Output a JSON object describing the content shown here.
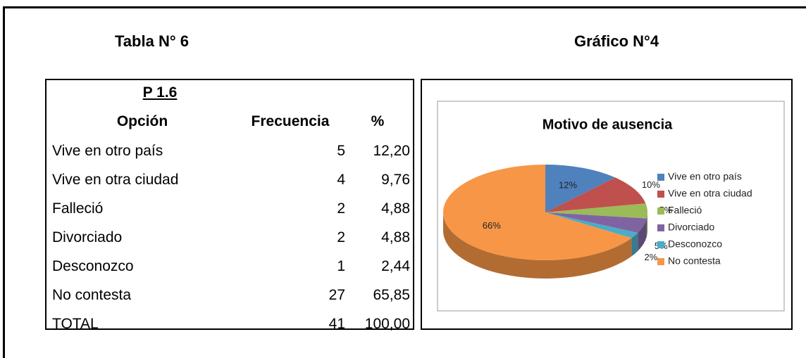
{
  "left_heading": "Tabla N° 6",
  "right_heading": "Gráfico N°4",
  "table": {
    "title": "P 1.6",
    "header": [
      "Opción",
      "Frecuencia",
      "%"
    ],
    "rows": [
      [
        "Vive en otro país",
        "5",
        "12,20"
      ],
      [
        "Vive en otra ciudad",
        "4",
        "9,76"
      ],
      [
        "Falleció",
        "2",
        "4,88"
      ],
      [
        "Divorciado",
        "2",
        "4,88"
      ],
      [
        "Desconozco",
        "1",
        "2,44"
      ],
      [
        "No contesta",
        "27",
        "65,85"
      ],
      [
        "TOTAL",
        "41",
        "100,00"
      ]
    ]
  },
  "chart_data": {
    "type": "pie",
    "title": "Motivo de ausencia",
    "categories": [
      "Vive en otro país",
      "Vive en otra ciudad",
      "Falleció",
      "Divorciado",
      "Desconozco",
      "No contesta"
    ],
    "values": [
      12,
      10,
      5,
      5,
      2,
      66
    ],
    "value_labels": [
      "12%",
      "10%",
      "5%",
      "5%",
      "2%",
      "66%"
    ],
    "colors": [
      "#4f81bd",
      "#c0504d",
      "#9bbb59",
      "#8064a2",
      "#4bacc6",
      "#f79646"
    ],
    "legend": "right"
  }
}
